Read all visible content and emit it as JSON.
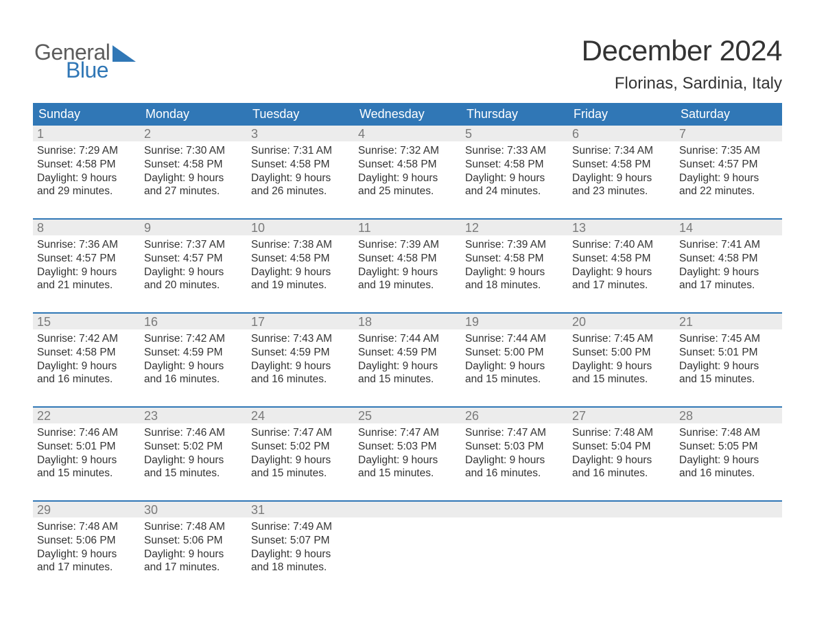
{
  "logo": {
    "word1": "General",
    "word2": "Blue",
    "word1_color": "#5c5c5c",
    "word2_color": "#3077b6",
    "shape_color": "#3077b6"
  },
  "header": {
    "month_title": "December 2024",
    "location": "Florinas, Sardinia, Italy"
  },
  "calendar": {
    "header_bg": "#3077b6",
    "header_fg": "#ffffff",
    "daynum_bg": "#ececec",
    "daynum_fg": "#7a7a7a",
    "rule_color": "#3077b6",
    "text_color": "#333333",
    "days_of_week": [
      "Sunday",
      "Monday",
      "Tuesday",
      "Wednesday",
      "Thursday",
      "Friday",
      "Saturday"
    ],
    "weeks": [
      [
        {
          "n": "1",
          "sr": "Sunrise: 7:29 AM",
          "ss": "Sunset: 4:58 PM",
          "d1": "Daylight: 9 hours",
          "d2": "and 29 minutes."
        },
        {
          "n": "2",
          "sr": "Sunrise: 7:30 AM",
          "ss": "Sunset: 4:58 PM",
          "d1": "Daylight: 9 hours",
          "d2": "and 27 minutes."
        },
        {
          "n": "3",
          "sr": "Sunrise: 7:31 AM",
          "ss": "Sunset: 4:58 PM",
          "d1": "Daylight: 9 hours",
          "d2": "and 26 minutes."
        },
        {
          "n": "4",
          "sr": "Sunrise: 7:32 AM",
          "ss": "Sunset: 4:58 PM",
          "d1": "Daylight: 9 hours",
          "d2": "and 25 minutes."
        },
        {
          "n": "5",
          "sr": "Sunrise: 7:33 AM",
          "ss": "Sunset: 4:58 PM",
          "d1": "Daylight: 9 hours",
          "d2": "and 24 minutes."
        },
        {
          "n": "6",
          "sr": "Sunrise: 7:34 AM",
          "ss": "Sunset: 4:58 PM",
          "d1": "Daylight: 9 hours",
          "d2": "and 23 minutes."
        },
        {
          "n": "7",
          "sr": "Sunrise: 7:35 AM",
          "ss": "Sunset: 4:57 PM",
          "d1": "Daylight: 9 hours",
          "d2": "and 22 minutes."
        }
      ],
      [
        {
          "n": "8",
          "sr": "Sunrise: 7:36 AM",
          "ss": "Sunset: 4:57 PM",
          "d1": "Daylight: 9 hours",
          "d2": "and 21 minutes."
        },
        {
          "n": "9",
          "sr": "Sunrise: 7:37 AM",
          "ss": "Sunset: 4:57 PM",
          "d1": "Daylight: 9 hours",
          "d2": "and 20 minutes."
        },
        {
          "n": "10",
          "sr": "Sunrise: 7:38 AM",
          "ss": "Sunset: 4:58 PM",
          "d1": "Daylight: 9 hours",
          "d2": "and 19 minutes."
        },
        {
          "n": "11",
          "sr": "Sunrise: 7:39 AM",
          "ss": "Sunset: 4:58 PM",
          "d1": "Daylight: 9 hours",
          "d2": "and 19 minutes."
        },
        {
          "n": "12",
          "sr": "Sunrise: 7:39 AM",
          "ss": "Sunset: 4:58 PM",
          "d1": "Daylight: 9 hours",
          "d2": "and 18 minutes."
        },
        {
          "n": "13",
          "sr": "Sunrise: 7:40 AM",
          "ss": "Sunset: 4:58 PM",
          "d1": "Daylight: 9 hours",
          "d2": "and 17 minutes."
        },
        {
          "n": "14",
          "sr": "Sunrise: 7:41 AM",
          "ss": "Sunset: 4:58 PM",
          "d1": "Daylight: 9 hours",
          "d2": "and 17 minutes."
        }
      ],
      [
        {
          "n": "15",
          "sr": "Sunrise: 7:42 AM",
          "ss": "Sunset: 4:58 PM",
          "d1": "Daylight: 9 hours",
          "d2": "and 16 minutes."
        },
        {
          "n": "16",
          "sr": "Sunrise: 7:42 AM",
          "ss": "Sunset: 4:59 PM",
          "d1": "Daylight: 9 hours",
          "d2": "and 16 minutes."
        },
        {
          "n": "17",
          "sr": "Sunrise: 7:43 AM",
          "ss": "Sunset: 4:59 PM",
          "d1": "Daylight: 9 hours",
          "d2": "and 16 minutes."
        },
        {
          "n": "18",
          "sr": "Sunrise: 7:44 AM",
          "ss": "Sunset: 4:59 PM",
          "d1": "Daylight: 9 hours",
          "d2": "and 15 minutes."
        },
        {
          "n": "19",
          "sr": "Sunrise: 7:44 AM",
          "ss": "Sunset: 5:00 PM",
          "d1": "Daylight: 9 hours",
          "d2": "and 15 minutes."
        },
        {
          "n": "20",
          "sr": "Sunrise: 7:45 AM",
          "ss": "Sunset: 5:00 PM",
          "d1": "Daylight: 9 hours",
          "d2": "and 15 minutes."
        },
        {
          "n": "21",
          "sr": "Sunrise: 7:45 AM",
          "ss": "Sunset: 5:01 PM",
          "d1": "Daylight: 9 hours",
          "d2": "and 15 minutes."
        }
      ],
      [
        {
          "n": "22",
          "sr": "Sunrise: 7:46 AM",
          "ss": "Sunset: 5:01 PM",
          "d1": "Daylight: 9 hours",
          "d2": "and 15 minutes."
        },
        {
          "n": "23",
          "sr": "Sunrise: 7:46 AM",
          "ss": "Sunset: 5:02 PM",
          "d1": "Daylight: 9 hours",
          "d2": "and 15 minutes."
        },
        {
          "n": "24",
          "sr": "Sunrise: 7:47 AM",
          "ss": "Sunset: 5:02 PM",
          "d1": "Daylight: 9 hours",
          "d2": "and 15 minutes."
        },
        {
          "n": "25",
          "sr": "Sunrise: 7:47 AM",
          "ss": "Sunset: 5:03 PM",
          "d1": "Daylight: 9 hours",
          "d2": "and 15 minutes."
        },
        {
          "n": "26",
          "sr": "Sunrise: 7:47 AM",
          "ss": "Sunset: 5:03 PM",
          "d1": "Daylight: 9 hours",
          "d2": "and 16 minutes."
        },
        {
          "n": "27",
          "sr": "Sunrise: 7:48 AM",
          "ss": "Sunset: 5:04 PM",
          "d1": "Daylight: 9 hours",
          "d2": "and 16 minutes."
        },
        {
          "n": "28",
          "sr": "Sunrise: 7:48 AM",
          "ss": "Sunset: 5:05 PM",
          "d1": "Daylight: 9 hours",
          "d2": "and 16 minutes."
        }
      ],
      [
        {
          "n": "29",
          "sr": "Sunrise: 7:48 AM",
          "ss": "Sunset: 5:06 PM",
          "d1": "Daylight: 9 hours",
          "d2": "and 17 minutes."
        },
        {
          "n": "30",
          "sr": "Sunrise: 7:48 AM",
          "ss": "Sunset: 5:06 PM",
          "d1": "Daylight: 9 hours",
          "d2": "and 17 minutes."
        },
        {
          "n": "31",
          "sr": "Sunrise: 7:49 AM",
          "ss": "Sunset: 5:07 PM",
          "d1": "Daylight: 9 hours",
          "d2": "and 18 minutes."
        },
        null,
        null,
        null,
        null
      ]
    ]
  }
}
